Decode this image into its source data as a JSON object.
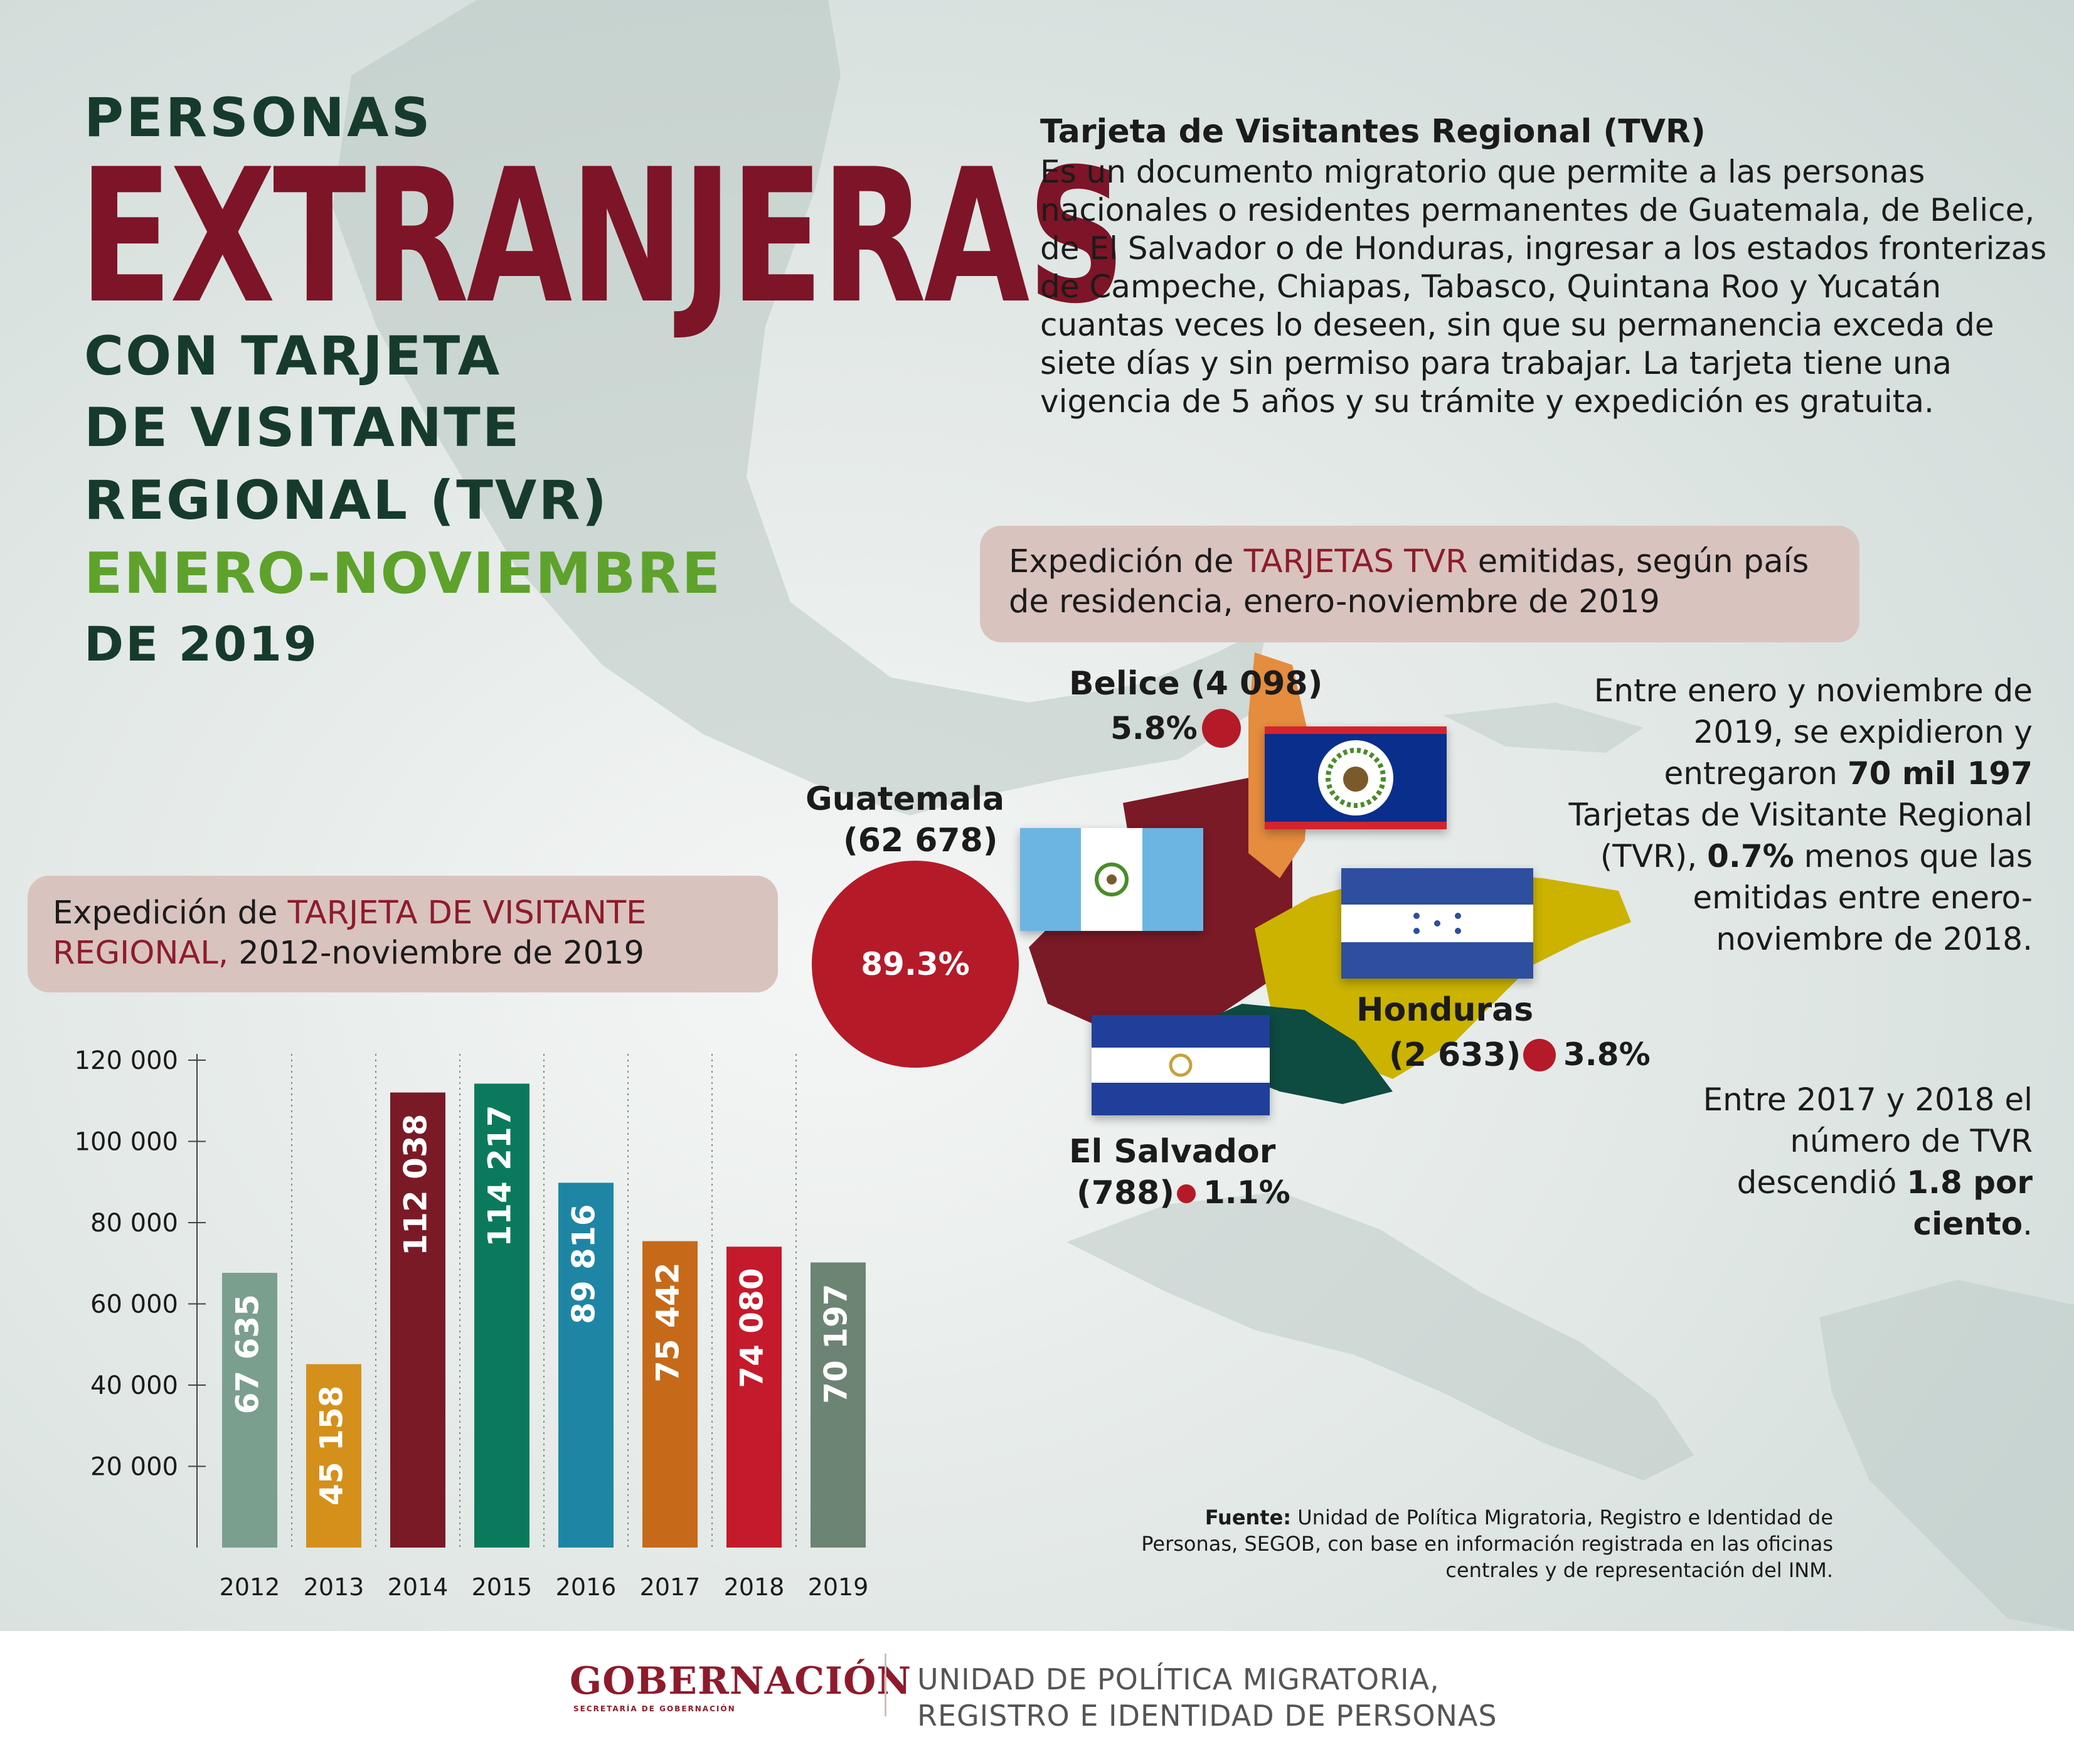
{
  "title": {
    "line1": "PERSONAS",
    "line2": "EXTRANJERAS",
    "line3": "CON TARJETA",
    "line4": "DE VISITANTE",
    "line5": "REGIONAL (TVR)",
    "line6": "ENERO-NOVIEMBRE",
    "line7": "DE 2019"
  },
  "intro": {
    "heading": "Tarjeta de Visitantes Regional (TVR)",
    "body": "Es un documento migratorio que permite a las personas nacionales o residentes permanentes de Guatemala, de Belice, de El Salvador o de Honduras, ingresar a los estados fronterizas de Campeche, Chiapas, Tabasco, Quintana Roo y Yucatán cuantas veces lo deseen, sin que su permanencia exceda de siete días y sin permiso para trabajar. La tarjeta tiene una vigencia de 5 años y su trámite y expedición es gratuita."
  },
  "map_box": {
    "pre": "Expedición de ",
    "accent": "TARJETAS TVR",
    "post": " emitidas, según país de residencia, enero-noviembre de 2019"
  },
  "bar_box": {
    "pre": "Expedición de ",
    "accent": "TARJETA DE VISITANTE REGIONAL,",
    "post": " 2012-noviembre de 2019"
  },
  "countries": {
    "belice": {
      "name": "Belice",
      "count": "(4 098)",
      "pct": "5.8%"
    },
    "guatemala": {
      "name": "Guatemala",
      "count": "(62 678)",
      "pct": "89.3%"
    },
    "honduras": {
      "name": "Honduras",
      "count": "(2 633)",
      "pct": "3.8%"
    },
    "el_salvador": {
      "name": "El Salvador",
      "count": "(788)",
      "pct": "1.1%"
    }
  },
  "side": {
    "p1_a": "Entre enero y noviembre de 2019, se expidieron y entregaron ",
    "p1_b": "70 mil 197",
    "p1_c": " Tarjetas de Visitante Regional (TVR), ",
    "p1_d": "0.7%",
    "p1_e": " menos que las emitidas entre enero-noviembre de 2018.",
    "p2_a": "Entre 2017 y 2018 el número de TVR descendió ",
    "p2_b": "1.8 por ciento",
    "p2_c": "."
  },
  "chart_data": {
    "type": "bar",
    "categories": [
      "2012",
      "2013",
      "2014",
      "2015",
      "2016",
      "2017",
      "2018",
      "2019"
    ],
    "values": [
      67635,
      45158,
      112038,
      114217,
      89816,
      75442,
      74080,
      70197
    ],
    "value_labels": [
      "67 635",
      "45 158",
      "112 038",
      "114 217",
      "89 816",
      "75 442",
      "74 080",
      "70 197"
    ],
    "colors": [
      "#7a9f8e",
      "#d4901b",
      "#7a1a26",
      "#0b7a5c",
      "#1e86a4",
      "#c66a1a",
      "#c41a2b",
      "#6c8473"
    ],
    "yticks": [
      20000,
      40000,
      60000,
      80000,
      100000,
      120000
    ],
    "ytick_labels": [
      "20 000",
      "40 000",
      "60 000",
      "80 000",
      "100 000",
      "120 000"
    ],
    "ylim": [
      0,
      120000
    ],
    "grid": "dotted vertical separators"
  },
  "source": {
    "label": "Fuente:",
    "text": " Unidad de Política Migratoria, Registro e Identidad de Personas, SEGOB, con base en información registrada en las oficinas centrales y de representación del INM."
  },
  "footer": {
    "logo": "GOBERNACIÓN",
    "logo_sub": "SECRETARÍA DE GOBERNACIÓN",
    "unit_line1": "UNIDAD DE POLÍTICA MIGRATORIA,",
    "unit_line2": "REGISTRO E IDENTIDAD DE PERSONAS"
  }
}
